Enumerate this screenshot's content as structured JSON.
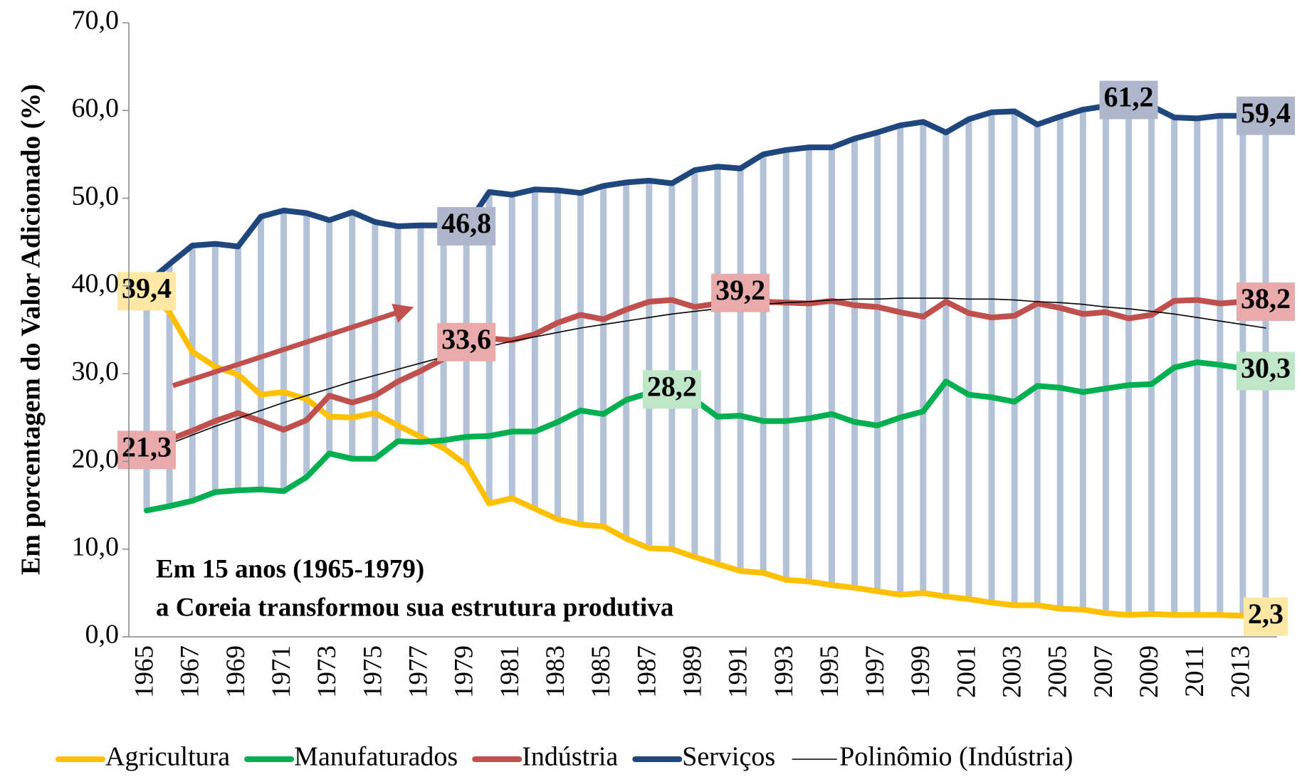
{
  "chart_data": {
    "type": "line",
    "y_label": "Em porcentagem do Valor Adicionado (%)",
    "categories": [
      "1965",
      null,
      "1967",
      null,
      "1969",
      null,
      "1971",
      null,
      "1973",
      null,
      "1975",
      null,
      "1977",
      null,
      "1979",
      null,
      "1981",
      null,
      "1983",
      null,
      "1985",
      null,
      "1987",
      null,
      "1989",
      null,
      "1991",
      null,
      "1993",
      null,
      "1995",
      null,
      "1997",
      null,
      "1999",
      null,
      "2001",
      null,
      "2003",
      null,
      "2005",
      null,
      "2007",
      null,
      "2009",
      null,
      "2011",
      null,
      "2013",
      null
    ],
    "ylim": [
      0,
      70
    ],
    "yticks": [
      {
        "value": 0,
        "label": "0,0"
      },
      {
        "value": 10,
        "label": "10,0"
      },
      {
        "value": 20,
        "label": "20,0"
      },
      {
        "value": 30,
        "label": "30,0"
      },
      {
        "value": 40,
        "label": "40,0"
      },
      {
        "value": 50,
        "label": "50,0"
      },
      {
        "value": 60,
        "label": "60,0"
      },
      {
        "value": 70,
        "label": "70,0"
      }
    ],
    "grid": false,
    "high_low_lines": true,
    "high_low_color": "#b4c2d7",
    "legend": "bottom",
    "annotations": [
      "Em 15 anos (1965-1979)",
      "a Coreia transformou sua estrutura produtiva"
    ],
    "series": [
      {
        "name": "Agricultura",
        "color": "#ffc000",
        "label_fill": "#fde8a6",
        "values": [
          39.4,
          37.0,
          32.5,
          30.8,
          29.9,
          27.6,
          27.9,
          27.1,
          25.1,
          25.0,
          25.5,
          24.1,
          22.8,
          21.5,
          19.6,
          15.2,
          15.8,
          14.6,
          13.4,
          12.8,
          12.6,
          11.2,
          10.1,
          10.0,
          9.1,
          8.3,
          7.5,
          7.3,
          6.5,
          6.3,
          5.9,
          5.6,
          5.2,
          4.8,
          5.0,
          4.6,
          4.3,
          3.9,
          3.6,
          3.6,
          3.2,
          3.1,
          2.7,
          2.5,
          2.6,
          2.5,
          2.5,
          2.5,
          2.4,
          2.3
        ],
        "value_labels": [
          "39,4",
          null,
          null,
          null,
          null,
          null,
          null,
          null,
          null,
          null,
          null,
          null,
          null,
          null,
          null,
          null,
          null,
          null,
          null,
          null,
          null,
          null,
          null,
          null,
          null,
          null,
          null,
          null,
          null,
          null,
          null,
          null,
          null,
          null,
          null,
          null,
          null,
          null,
          null,
          null,
          null,
          null,
          null,
          null,
          null,
          null,
          null,
          null,
          null,
          "2,3"
        ]
      },
      {
        "name": "Manufaturados",
        "color": "#00b050",
        "label_fill": "#bfe6c8",
        "values": [
          14.4,
          14.9,
          15.5,
          16.5,
          16.7,
          16.8,
          16.6,
          18.2,
          20.9,
          20.3,
          20.3,
          22.3,
          22.2,
          22.4,
          22.8,
          22.9,
          23.4,
          23.4,
          24.5,
          25.8,
          25.4,
          27.0,
          27.8,
          28.2,
          27.0,
          25.1,
          25.2,
          24.6,
          24.6,
          24.9,
          25.4,
          24.5,
          24.1,
          25.0,
          25.7,
          29.1,
          27.6,
          27.3,
          26.8,
          28.6,
          28.4,
          27.9,
          28.3,
          28.7,
          28.8,
          30.7,
          31.3,
          31.0,
          30.6,
          30.3
        ],
        "value_labels": [
          null,
          null,
          null,
          null,
          null,
          null,
          null,
          null,
          null,
          null,
          null,
          null,
          null,
          null,
          null,
          null,
          null,
          null,
          null,
          null,
          null,
          null,
          null,
          "28,2",
          null,
          null,
          null,
          null,
          null,
          null,
          null,
          null,
          null,
          null,
          null,
          null,
          null,
          null,
          null,
          null,
          null,
          null,
          null,
          null,
          null,
          null,
          null,
          null,
          null,
          "30,3"
        ]
      },
      {
        "name": "Indústria",
        "color": "#c0504d",
        "label_fill": "#e8aaaa",
        "values": [
          21.3,
          22.5,
          23.5,
          24.6,
          25.5,
          24.6,
          23.6,
          24.7,
          27.5,
          26.7,
          27.5,
          29.1,
          30.3,
          31.7,
          33.6,
          34.0,
          33.8,
          34.5,
          35.8,
          36.7,
          36.2,
          37.3,
          38.2,
          38.4,
          37.6,
          38.0,
          39.2,
          38.2,
          38.1,
          38.0,
          38.3,
          37.8,
          37.6,
          37.0,
          36.5,
          38.2,
          36.9,
          36.4,
          36.6,
          38.0,
          37.5,
          36.8,
          37.0,
          36.3,
          36.7,
          38.3,
          38.4,
          38.0,
          38.2,
          38.2
        ],
        "value_labels": [
          "21,3",
          null,
          null,
          null,
          null,
          null,
          null,
          null,
          null,
          null,
          null,
          null,
          null,
          null,
          "33,6",
          null,
          null,
          null,
          null,
          null,
          null,
          null,
          null,
          null,
          null,
          null,
          "39,2",
          null,
          null,
          null,
          null,
          null,
          null,
          null,
          null,
          null,
          null,
          null,
          null,
          null,
          null,
          null,
          null,
          null,
          null,
          null,
          null,
          null,
          null,
          "38,2"
        ]
      },
      {
        "name": "Serviços",
        "color": "#1f477e",
        "label_fill": "#aeb6cb",
        "values": [
          40.3,
          42.5,
          44.6,
          44.8,
          44.5,
          47.9,
          48.6,
          48.3,
          47.5,
          48.4,
          47.3,
          46.8,
          46.9,
          46.9,
          46.8,
          50.7,
          50.4,
          51.0,
          50.9,
          50.6,
          51.4,
          51.8,
          52.0,
          51.7,
          53.2,
          53.6,
          53.4,
          55.0,
          55.5,
          55.8,
          55.8,
          56.8,
          57.5,
          58.3,
          58.7,
          57.5,
          59.0,
          59.8,
          59.9,
          58.4,
          59.3,
          60.1,
          60.5,
          61.2,
          60.5,
          59.2,
          59.1,
          59.4,
          59.4,
          59.4
        ],
        "value_labels": [
          null,
          null,
          null,
          null,
          null,
          null,
          null,
          null,
          null,
          null,
          null,
          null,
          null,
          null,
          "46,8",
          null,
          null,
          null,
          null,
          null,
          null,
          null,
          null,
          null,
          null,
          null,
          null,
          null,
          null,
          null,
          null,
          null,
          null,
          null,
          null,
          null,
          null,
          null,
          null,
          null,
          null,
          null,
          null,
          "61,2",
          null,
          null,
          null,
          null,
          null,
          "59,4"
        ]
      },
      {
        "name": "Polinômio (Indústria)",
        "color": "#000000",
        "trendline": true,
        "values": [
          21.0,
          22.0,
          23.0,
          24.0,
          24.9,
          25.8,
          26.7,
          27.5,
          28.3,
          29.1,
          29.8,
          30.5,
          31.2,
          31.9,
          32.5,
          33.1,
          33.7,
          34.2,
          34.7,
          35.2,
          35.6,
          36.0,
          36.4,
          36.8,
          37.1,
          37.4,
          37.6,
          37.9,
          38.1,
          38.2,
          38.4,
          38.5,
          38.5,
          38.6,
          38.6,
          38.6,
          38.5,
          38.5,
          38.4,
          38.2,
          38.1,
          37.9,
          37.6,
          37.4,
          37.1,
          36.8,
          36.4,
          36.0,
          35.6,
          35.2
        ]
      }
    ]
  }
}
